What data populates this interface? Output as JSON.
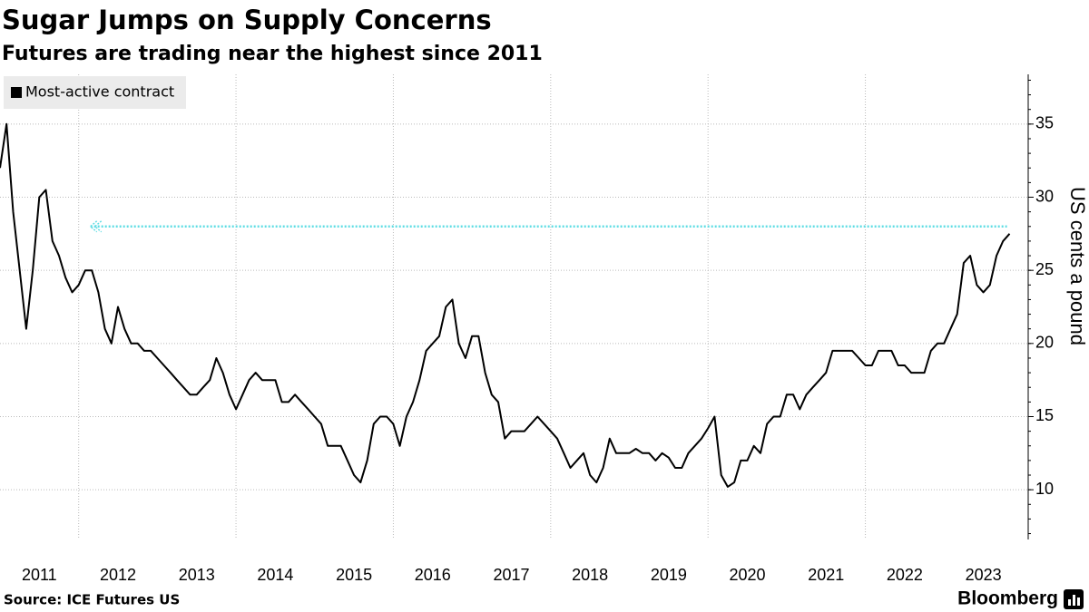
{
  "chart_data": {
    "type": "line",
    "title": "Sugar Jumps on Supply Concerns",
    "subtitle": "Futures are trading near the highest since 2011",
    "y_axis_label": "US cents a pound",
    "source": "Source: ICE Futures US",
    "brand": "Bloomberg",
    "legend_position": "top-left",
    "grid": true,
    "xlim": [
      2011,
      2024.07
    ],
    "ylim": [
      6.6,
      38.4
    ],
    "xticks": [
      {
        "value": 2011,
        "label": "2011"
      },
      {
        "value": 2012,
        "label": "2012"
      },
      {
        "value": 2013,
        "label": "2013"
      },
      {
        "value": 2014,
        "label": "2014"
      },
      {
        "value": 2015,
        "label": "2015"
      },
      {
        "value": 2016,
        "label": "2016"
      },
      {
        "value": 2017,
        "label": "2017"
      },
      {
        "value": 2018,
        "label": "2018"
      },
      {
        "value": 2019,
        "label": "2019"
      },
      {
        "value": 2020,
        "label": "2020"
      },
      {
        "value": 2021,
        "label": "2021"
      },
      {
        "value": 2022,
        "label": "2022"
      },
      {
        "value": 2023,
        "label": "2023"
      }
    ],
    "yticks": [
      10,
      15,
      20,
      25,
      30,
      35
    ],
    "reference_line": {
      "y": 28,
      "x": [
        2012.15,
        2023.8
      ],
      "color": "#5fdde4"
    },
    "x": [
      2011,
      2011.083,
      2011.167,
      2011.25,
      2011.333,
      2011.417,
      2011.5,
      2011.583,
      2011.667,
      2011.75,
      2011.833,
      2011.917,
      2012,
      2012.083,
      2012.167,
      2012.25,
      2012.333,
      2012.417,
      2012.5,
      2012.583,
      2012.667,
      2012.75,
      2012.833,
      2012.917,
      2013,
      2013.083,
      2013.167,
      2013.25,
      2013.333,
      2013.417,
      2013.5,
      2013.583,
      2013.667,
      2013.75,
      2013.833,
      2013.917,
      2014,
      2014.083,
      2014.167,
      2014.25,
      2014.333,
      2014.417,
      2014.5,
      2014.583,
      2014.667,
      2014.75,
      2014.833,
      2014.917,
      2015,
      2015.083,
      2015.167,
      2015.25,
      2015.333,
      2015.417,
      2015.5,
      2015.583,
      2015.667,
      2015.75,
      2015.833,
      2015.917,
      2016,
      2016.083,
      2016.167,
      2016.25,
      2016.333,
      2016.417,
      2016.5,
      2016.583,
      2016.667,
      2016.75,
      2016.833,
      2016.917,
      2017,
      2017.083,
      2017.167,
      2017.25,
      2017.333,
      2017.417,
      2017.5,
      2017.583,
      2017.667,
      2017.75,
      2017.833,
      2017.917,
      2018,
      2018.083,
      2018.167,
      2018.25,
      2018.333,
      2018.417,
      2018.5,
      2018.583,
      2018.667,
      2018.75,
      2018.833,
      2018.917,
      2019,
      2019.083,
      2019.167,
      2019.25,
      2019.333,
      2019.417,
      2019.5,
      2019.583,
      2019.667,
      2019.75,
      2019.833,
      2019.917,
      2020,
      2020.083,
      2020.167,
      2020.25,
      2020.333,
      2020.417,
      2020.5,
      2020.583,
      2020.667,
      2020.75,
      2020.833,
      2020.917,
      2021,
      2021.083,
      2021.167,
      2021.25,
      2021.333,
      2021.417,
      2021.5,
      2021.583,
      2021.667,
      2021.75,
      2021.833,
      2021.917,
      2022,
      2022.083,
      2022.167,
      2022.25,
      2022.333,
      2022.417,
      2022.5,
      2022.583,
      2022.667,
      2022.75,
      2022.833,
      2022.917,
      2023,
      2023.083,
      2023.167,
      2023.25,
      2023.333,
      2023.417,
      2023.5,
      2023.583,
      2023.667,
      2023.75,
      2023.833
    ],
    "series": [
      {
        "name": "Most-active contract",
        "color": "#000000",
        "values": [
          32,
          35,
          29,
          25,
          21,
          25,
          30,
          30.5,
          27,
          26,
          24.5,
          23.5,
          24,
          25,
          25,
          23.5,
          21,
          20,
          22.5,
          21,
          20,
          20,
          19.5,
          19.5,
          19,
          18.5,
          18,
          17.5,
          17,
          16.5,
          16.5,
          17,
          17.5,
          19,
          18,
          16.5,
          15.5,
          16.5,
          17.5,
          18,
          17.5,
          17.5,
          17.5,
          16,
          16,
          16.5,
          16,
          15.5,
          15,
          14.5,
          13,
          13,
          13,
          12,
          11,
          10.5,
          12,
          14.5,
          15,
          15,
          14.5,
          13,
          15,
          16,
          17.5,
          19.5,
          20,
          20.5,
          22.5,
          23,
          20,
          19,
          20.5,
          20.5,
          18,
          16.5,
          16,
          13.5,
          14,
          14,
          14,
          14.5,
          15,
          14.5,
          14,
          13.5,
          12.5,
          11.5,
          12,
          12.5,
          11,
          10.5,
          11.5,
          13.5,
          12.5,
          12.5,
          12.5,
          12.8,
          12.5,
          12.5,
          12,
          12.5,
          12.2,
          11.5,
          11.5,
          12.5,
          13,
          13.5,
          14.2,
          15,
          11,
          10.2,
          10.5,
          12,
          12,
          13,
          12.5,
          14.5,
          15,
          15,
          16.5,
          16.5,
          15.5,
          16.5,
          17,
          17.5,
          18,
          19.5,
          19.5,
          19.5,
          19.5,
          19,
          18.5,
          18.5,
          19.5,
          19.5,
          19.5,
          18.5,
          18.5,
          18,
          18,
          18,
          19.5,
          20,
          20,
          21,
          22,
          25.5,
          26,
          24,
          23.5,
          24,
          26,
          27,
          27.5
        ]
      }
    ]
  }
}
